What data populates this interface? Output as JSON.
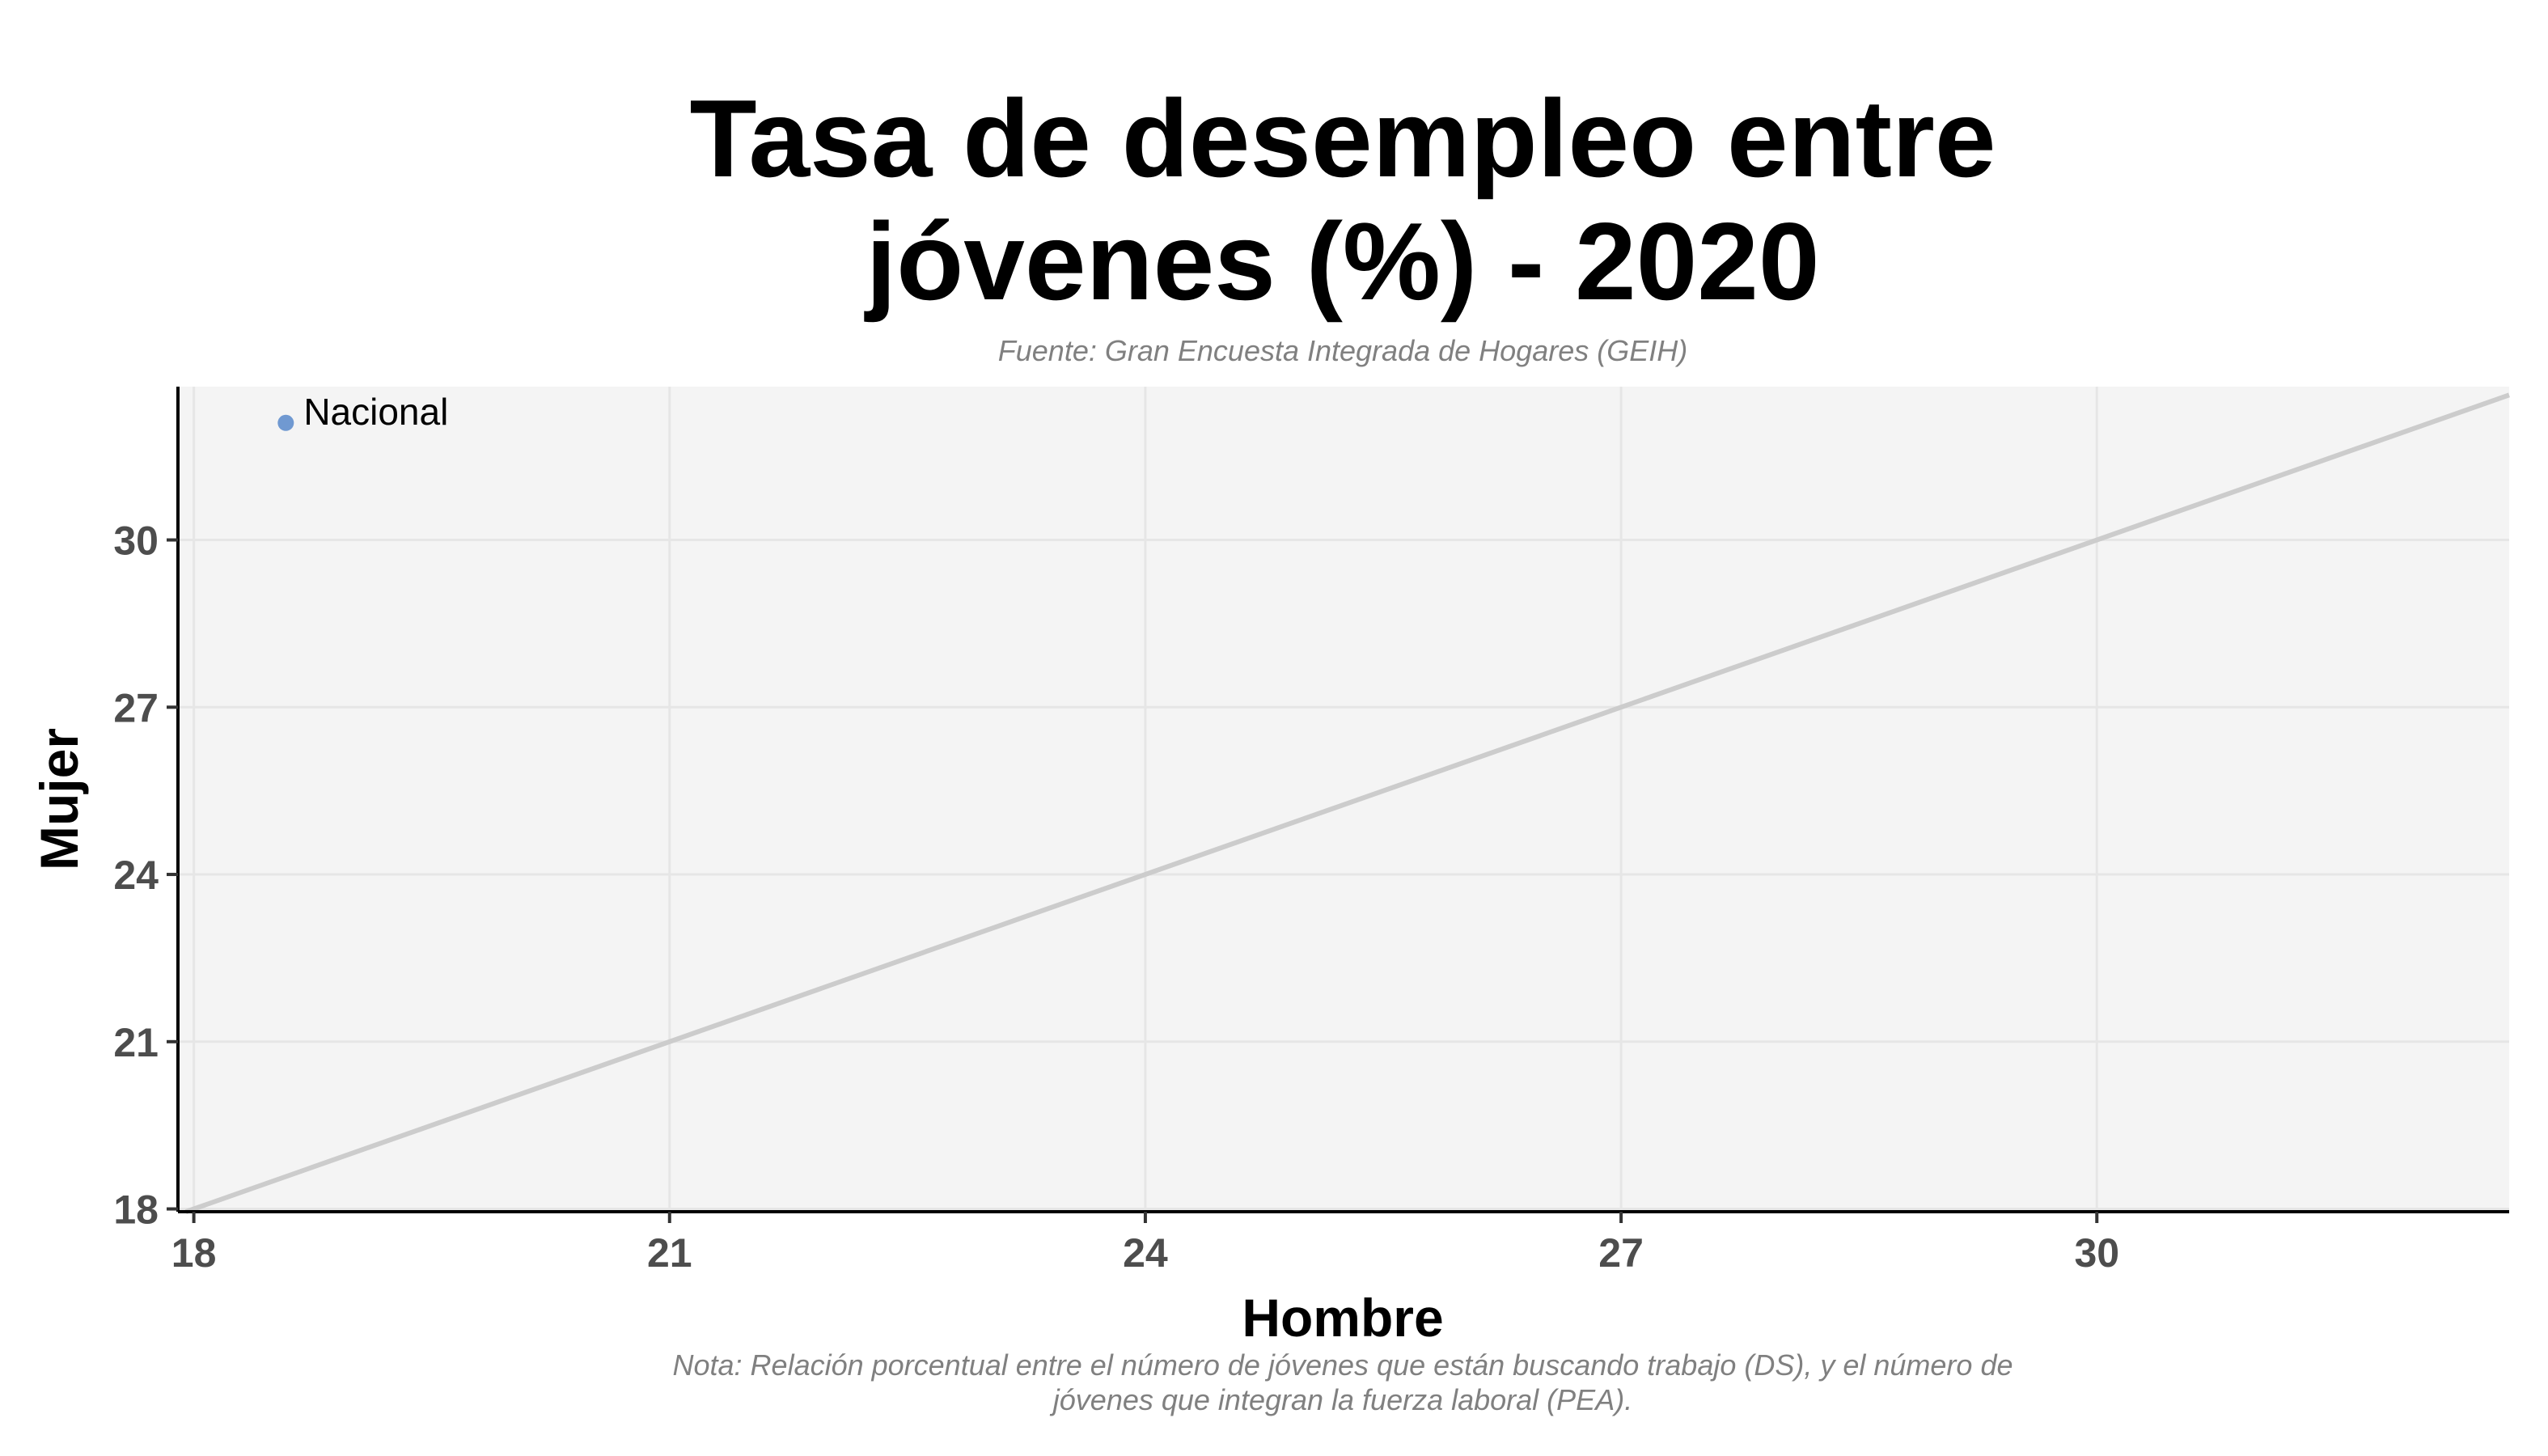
{
  "chart_data": {
    "type": "scatter",
    "title_lines": [
      "Tasa de desempleo entre",
      "jóvenes (%) - 2020"
    ],
    "subtitle": "Fuente: Gran Encuesta Integrada de Hogares (GEIH)",
    "caption_lines": [
      "Nota: Relación porcentual entre el número de jóvenes que están buscando trabajo (DS), y el número de",
      "jóvenes que integran la fuerza laboral (PEA)."
    ],
    "xlabel": "Hombre",
    "ylabel": "Mujer",
    "xlim": [
      17.9,
      32.6
    ],
    "ylim": [
      17.95,
      32.75
    ],
    "xticks": [
      18,
      21,
      24,
      27,
      30
    ],
    "yticks": [
      18,
      21,
      24,
      27,
      30
    ],
    "grid": true,
    "reference_line": {
      "type": "identity",
      "color": "#cccccc"
    },
    "points": [
      {
        "label": "Nacional",
        "x": 18.58,
        "y": 32.1,
        "color": "#7099d1"
      }
    ]
  }
}
